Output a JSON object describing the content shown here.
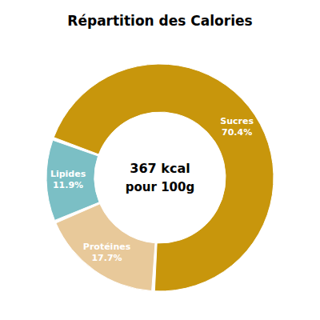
{
  "chart_data": {
    "type": "pie",
    "title": "Répartition des Calories",
    "categories": [
      "Sucres",
      "Protéines",
      "Lipides"
    ],
    "values": [
      70.4,
      17.7,
      11.9
    ],
    "value_labels": [
      "70.4%",
      "17.7%",
      "11.9%"
    ],
    "colors": [
      "#C8960C",
      "#E8C99A",
      "#7BBFC5"
    ],
    "data_labels": true,
    "annotations": [
      "367 kcal",
      "pour 100g"
    ]
  }
}
